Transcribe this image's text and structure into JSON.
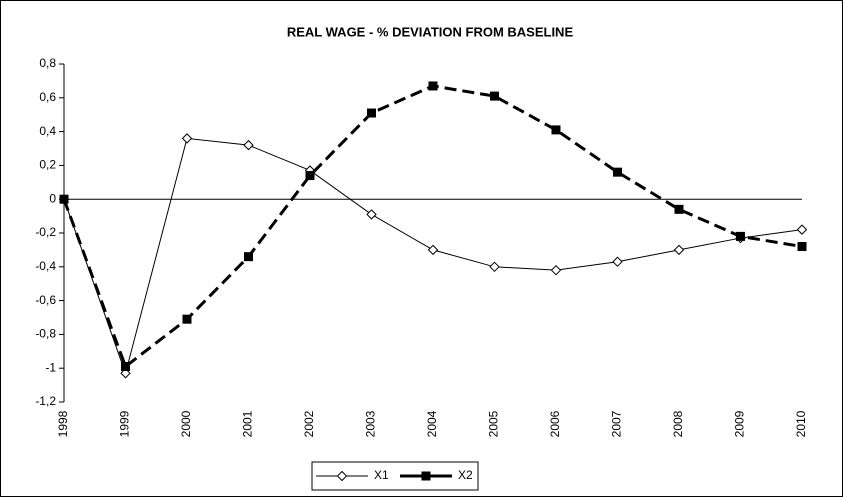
{
  "chart_data": {
    "type": "line",
    "title": "REAL WAGE - % DEVIATION FROM BASELINE",
    "categories": [
      "1998",
      "1999",
      "2000",
      "2001",
      "2002",
      "2003",
      "2004",
      "2005",
      "2006",
      "2007",
      "2008",
      "2009",
      "2010"
    ],
    "series": [
      {
        "name": "X1",
        "color": "#000000",
        "dash": false,
        "marker": "diamond",
        "values": [
          0,
          -1.03,
          0.36,
          0.32,
          0.17,
          -0.09,
          -0.3,
          -0.4,
          -0.42,
          -0.37,
          -0.3,
          -0.23,
          -0.18
        ]
      },
      {
        "name": "X2",
        "color": "#000000",
        "dash": true,
        "marker": "square",
        "values": [
          0,
          -0.99,
          -0.71,
          -0.34,
          0.14,
          0.51,
          0.67,
          0.61,
          0.41,
          0.16,
          -0.06,
          -0.22,
          -0.28
        ]
      }
    ],
    "ylim": [
      -1.2,
      0.8
    ],
    "yticks": [
      {
        "value": -1.2,
        "label": "-1,2"
      },
      -1,
      {
        "value": -0.8,
        "label": "-0,8"
      },
      {
        "value": -0.6,
        "label": "-0,6"
      },
      {
        "value": -0.4,
        "label": "-0,4"
      },
      {
        "value": -0.2,
        "label": "-0,2"
      },
      0,
      {
        "value": 0.2,
        "label": "0,2"
      },
      {
        "value": 0.4,
        "label": "0,4"
      },
      {
        "value": 0.6,
        "label": "0,6"
      },
      {
        "value": 0.8,
        "label": "0,8"
      }
    ],
    "grid": false,
    "legend": "bottom"
  }
}
